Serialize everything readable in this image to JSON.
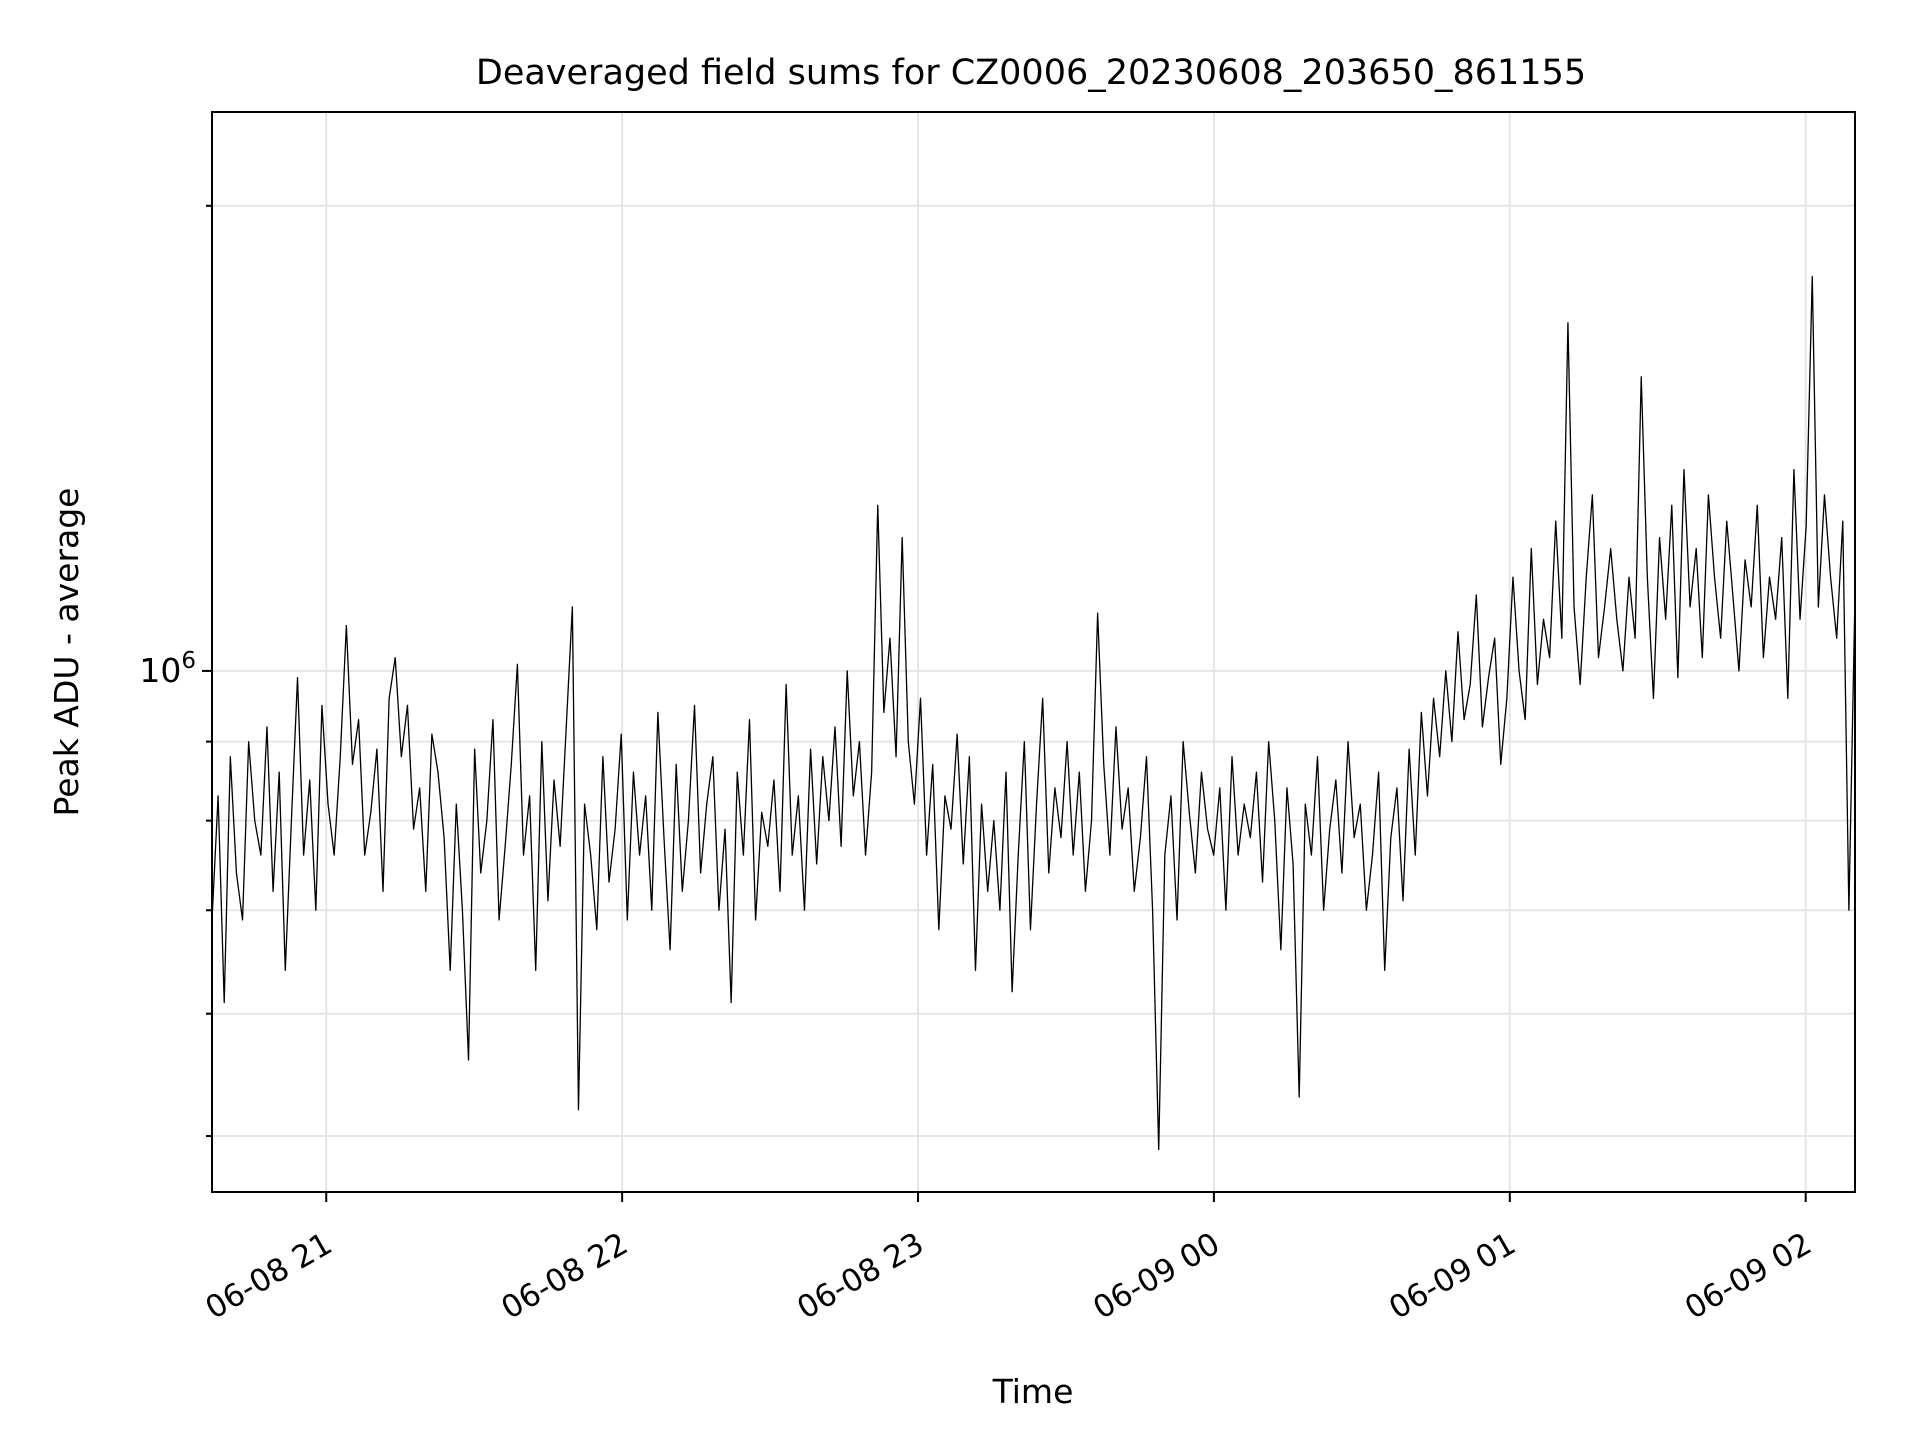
{
  "chart_data": {
    "type": "line",
    "title": "Deaveraged field sums for CZ0006_20230608_203650_861155",
    "xlabel": "Time",
    "ylabel": "Peak ADU - average",
    "y_scale": "log",
    "grid": true,
    "x_ticks": [
      "06-08 21",
      "06-08 22",
      "06-08 23",
      "06-09 00",
      "06-09 01",
      "06-09 02"
    ],
    "y_tick_major": "10^6",
    "x_range": [
      "2023-06-08 20:36:50",
      "2023-06-09 02:10:00"
    ],
    "ylim": [
      460000,
      2300000
    ],
    "series": [
      {
        "color": "#000000",
        "x_start": "2023-06-08 20:36:50",
        "x_end": "2023-06-09 02:10:00",
        "values": [
          690000,
          830000,
          610000,
          880000,
          740000,
          690000,
          900000,
          800000,
          760000,
          920000,
          720000,
          860000,
          640000,
          800000,
          990000,
          760000,
          850000,
          700000,
          950000,
          820000,
          760000,
          880000,
          1070000,
          870000,
          930000,
          760000,
          810000,
          890000,
          720000,
          960000,
          1020000,
          880000,
          950000,
          790000,
          840000,
          720000,
          910000,
          860000,
          780000,
          640000,
          820000,
          700000,
          560000,
          890000,
          740000,
          800000,
          930000,
          690000,
          770000,
          870000,
          1010000,
          760000,
          830000,
          640000,
          900000,
          710000,
          850000,
          770000,
          920000,
          1100000,
          520000,
          820000,
          760000,
          680000,
          880000,
          730000,
          790000,
          910000,
          690000,
          860000,
          760000,
          830000,
          700000,
          940000,
          780000,
          660000,
          870000,
          720000,
          800000,
          950000,
          740000,
          820000,
          880000,
          700000,
          790000,
          610000,
          860000,
          760000,
          930000,
          690000,
          810000,
          770000,
          850000,
          720000,
          980000,
          760000,
          830000,
          700000,
          890000,
          750000,
          880000,
          800000,
          920000,
          770000,
          1000000,
          830000,
          900000,
          760000,
          860000,
          1280000,
          940000,
          1050000,
          880000,
          1220000,
          900000,
          820000,
          960000,
          760000,
          870000,
          680000,
          830000,
          790000,
          910000,
          750000,
          880000,
          640000,
          820000,
          720000,
          800000,
          700000,
          860000,
          620000,
          760000,
          900000,
          680000,
          820000,
          960000,
          740000,
          840000,
          780000,
          900000,
          760000,
          860000,
          720000,
          800000,
          1090000,
          870000,
          760000,
          920000,
          790000,
          840000,
          720000,
          780000,
          880000,
          700000,
          490000,
          760000,
          830000,
          690000,
          900000,
          810000,
          740000,
          860000,
          790000,
          760000,
          840000,
          700000,
          880000,
          760000,
          820000,
          780000,
          860000,
          730000,
          900000,
          800000,
          660000,
          840000,
          750000,
          530000,
          820000,
          760000,
          880000,
          700000,
          790000,
          850000,
          740000,
          900000,
          780000,
          820000,
          700000,
          760000,
          860000,
          640000,
          780000,
          840000,
          710000,
          890000,
          760000,
          940000,
          830000,
          960000,
          880000,
          1000000,
          900000,
          1060000,
          930000,
          980000,
          1120000,
          920000,
          990000,
          1050000,
          870000,
          960000,
          1150000,
          1000000,
          930000,
          1200000,
          980000,
          1080000,
          1020000,
          1250000,
          1050000,
          1680000,
          1100000,
          980000,
          1150000,
          1300000,
          1020000,
          1100000,
          1200000,
          1080000,
          1000000,
          1150000,
          1050000,
          1550000,
          1150000,
          960000,
          1220000,
          1080000,
          1280000,
          990000,
          1350000,
          1100000,
          1200000,
          1020000,
          1300000,
          1150000,
          1050000,
          1250000,
          1120000,
          1000000,
          1180000,
          1100000,
          1280000,
          1020000,
          1150000,
          1080000,
          1220000,
          960000,
          1350000,
          1080000,
          1240000,
          1800000,
          1100000,
          1300000,
          1150000,
          1050000,
          1250000,
          700000,
          1120000
        ]
      }
    ]
  }
}
